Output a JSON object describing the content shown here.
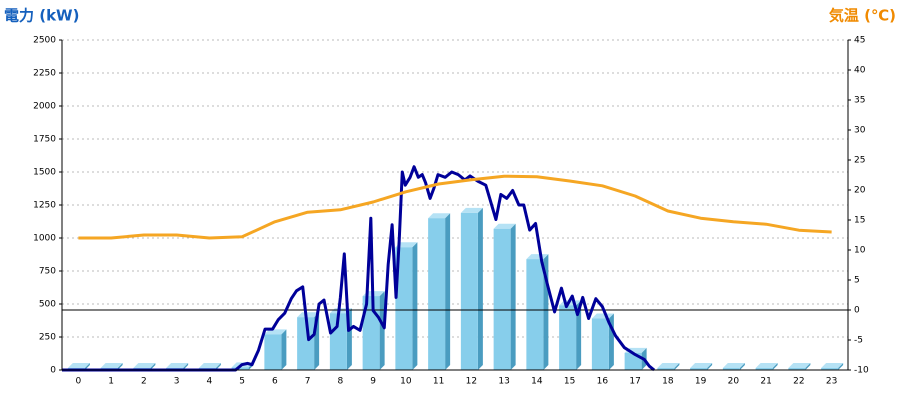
{
  "chart_data": {
    "type": "bar-line",
    "y_axis_label": "電力 (kW)",
    "y2_axis_label": "気温 (℃)",
    "categories": [
      "0",
      "1",
      "2",
      "3",
      "4",
      "5",
      "6",
      "7",
      "8",
      "9",
      "10",
      "11",
      "12",
      "13",
      "14",
      "15",
      "16",
      "17",
      "18",
      "19",
      "20",
      "21",
      "22",
      "23"
    ],
    "xlim": [
      -0.5,
      23.5
    ],
    "ylim": [
      0,
      2500
    ],
    "yticks": [
      0,
      250,
      500,
      750,
      1000,
      1250,
      1500,
      1750,
      2000,
      2250,
      2500
    ],
    "y2lim": [
      -10,
      45
    ],
    "y2ticks": [
      -10,
      -5,
      0,
      5,
      10,
      15,
      20,
      25,
      30,
      35,
      40,
      45
    ],
    "grid": true,
    "y2_zero_line": true,
    "series": [
      {
        "kind": "bar",
        "color": "#87ceeb",
        "values": [
          15,
          15,
          15,
          15,
          15,
          20,
          270,
          400,
          430,
          560,
          930,
          1150,
          1190,
          1070,
          840,
          490,
          390,
          130,
          15,
          15,
          15,
          15,
          15,
          15
        ]
      },
      {
        "kind": "line",
        "color": "#000099",
        "x": [
          -0.5,
          4.8,
          4.99,
          5.17,
          5.3,
          5.5,
          5.7,
          5.93,
          6.1,
          6.3,
          6.5,
          6.66,
          6.85,
          7.03,
          7.2,
          7.35,
          7.5,
          7.7,
          7.9,
          8.0,
          8.12,
          8.25,
          8.4,
          8.6,
          8.8,
          8.93,
          9.0,
          9.16,
          9.34,
          9.46,
          9.58,
          9.7,
          9.8,
          9.89,
          9.98,
          10.13,
          10.25,
          10.38,
          10.5,
          10.6,
          10.74,
          10.86,
          10.98,
          11.2,
          11.4,
          11.6,
          11.8,
          11.96,
          12.2,
          12.44,
          12.56,
          12.75,
          12.9,
          13.08,
          13.26,
          13.45,
          13.6,
          13.78,
          13.96,
          14.15,
          14.33,
          14.54,
          14.75,
          14.9,
          15.08,
          15.24,
          15.4,
          15.58,
          15.8,
          16.0,
          16.2,
          16.4,
          16.67,
          16.98,
          17.28,
          17.43,
          17.58
        ],
        "values": [
          0,
          0,
          40,
          50,
          40,
          150,
          310,
          310,
          380,
          430,
          540,
          600,
          630,
          230,
          270,
          500,
          530,
          280,
          330,
          550,
          880,
          300,
          330,
          300,
          500,
          1150,
          450,
          400,
          320,
          800,
          1100,
          550,
          1000,
          1500,
          1400,
          1460,
          1540,
          1460,
          1480,
          1420,
          1300,
          1380,
          1480,
          1460,
          1500,
          1480,
          1440,
          1470,
          1430,
          1400,
          1300,
          1140,
          1330,
          1300,
          1360,
          1250,
          1250,
          1060,
          1110,
          820,
          640,
          440,
          620,
          480,
          560,
          420,
          550,
          390,
          540,
          480,
          360,
          260,
          170,
          120,
          80,
          30,
          0
        ]
      },
      {
        "kind": "line",
        "axis": "y2",
        "color": "#f5a623",
        "values": [
          12,
          12,
          12.5,
          12.5,
          12,
          12.2,
          14.7,
          16.3,
          16.7,
          18,
          19.7,
          21,
          21.7,
          22.3,
          22.2,
          21.5,
          20.7,
          19,
          16.5,
          15.3,
          14.7,
          14.3,
          13.3,
          13
        ]
      }
    ]
  }
}
